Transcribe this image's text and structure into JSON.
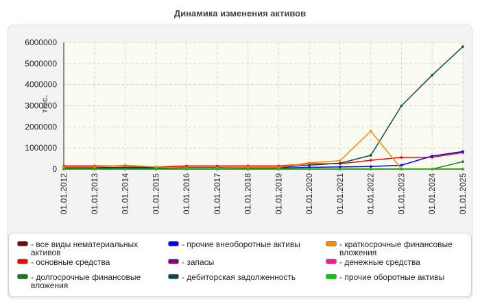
{
  "chart_data": {
    "type": "line",
    "title": "Динамика изменения активов",
    "ylabel": "тыс.",
    "xlabel": "",
    "ylim": [
      0,
      6000000
    ],
    "yticks": [
      0,
      1000000,
      2000000,
      3000000,
      4000000,
      5000000,
      6000000
    ],
    "ytick_labels": [
      "0",
      "1000000",
      "2000000",
      "3000000",
      "4000000",
      "5000000",
      "6000000"
    ],
    "categories": [
      "01.01.2012",
      "01.01.2013",
      "01.01.2014",
      "01.01.2015",
      "01.01.2016",
      "01.01.2017",
      "01.01.2018",
      "01.01.2019",
      "01.01.2020",
      "01.01.2021",
      "01.01.2022",
      "01.01.2023",
      "01.01.2024",
      "01.01.2025"
    ],
    "grid": true,
    "legend_placement": "bottom",
    "series": [
      {
        "name": "все виды нематериальных активов",
        "color": "#7a0a0a",
        "values": [
          0,
          0,
          0,
          0,
          0,
          0,
          0,
          0,
          0,
          0,
          0,
          0,
          0,
          0
        ]
      },
      {
        "name": "основные средства",
        "color": "#ff0000",
        "values": [
          150000,
          150000,
          150000,
          100000,
          150000,
          150000,
          150000,
          150000,
          250000,
          250000,
          420000,
          550000,
          560000,
          780000
        ]
      },
      {
        "name": "долгосрочные финансовые вложения",
        "color": "#1a7a1a",
        "values": [
          0,
          0,
          0,
          0,
          0,
          0,
          0,
          0,
          0,
          0,
          0,
          0,
          0,
          350000
        ]
      },
      {
        "name": "прочие внеоборотные активы",
        "color": "#0000ff",
        "values": [
          50000,
          50000,
          50000,
          50000,
          50000,
          50000,
          50000,
          50000,
          80000,
          100000,
          120000,
          180000,
          620000,
          830000
        ]
      },
      {
        "name": "запасы",
        "color": "#800080",
        "values": [
          0,
          0,
          0,
          0,
          0,
          0,
          0,
          0,
          0,
          0,
          0,
          0,
          0,
          0
        ]
      },
      {
        "name": "дебиторская задолженность",
        "color": "#0d4a4a",
        "values": [
          80000,
          80000,
          80000,
          80000,
          80000,
          80000,
          80000,
          80000,
          180000,
          280000,
          650000,
          3000000,
          4450000,
          5800000
        ]
      },
      {
        "name": "краткосрочные финансовые вложения",
        "color": "#ff8c00",
        "values": [
          100000,
          100000,
          180000,
          100000,
          50000,
          50000,
          80000,
          80000,
          300000,
          400000,
          1800000,
          0,
          0,
          0
        ]
      },
      {
        "name": "денежные средства",
        "color": "#ff1493",
        "values": [
          0,
          0,
          0,
          0,
          0,
          0,
          0,
          0,
          0,
          0,
          0,
          0,
          0,
          0
        ]
      },
      {
        "name": "прочие оборотные активы",
        "color": "#00cc00",
        "values": [
          0,
          0,
          0,
          0,
          0,
          0,
          0,
          0,
          0,
          0,
          0,
          0,
          0,
          0
        ]
      }
    ],
    "legend": [
      {
        "label": "- все виды нематериальных активов",
        "color": "#7a0a0a"
      },
      {
        "label": "- основные средства",
        "color": "#ff0000"
      },
      {
        "label": "- долгосрочные финансовые вложения",
        "color": "#1a7a1a"
      },
      {
        "label": "- прочие внеоборотные активы",
        "color": "#0000ff"
      },
      {
        "label": "- запасы",
        "color": "#800080"
      },
      {
        "label": "- дебиторская задолженность",
        "color": "#0d4a4a"
      },
      {
        "label": "- краткосрочные финансовые вложения",
        "color": "#ff8c00"
      },
      {
        "label": "- денежные средства",
        "color": "#ff1493"
      },
      {
        "label": "- прочие оборотные активы",
        "color": "#00cc00"
      }
    ]
  }
}
